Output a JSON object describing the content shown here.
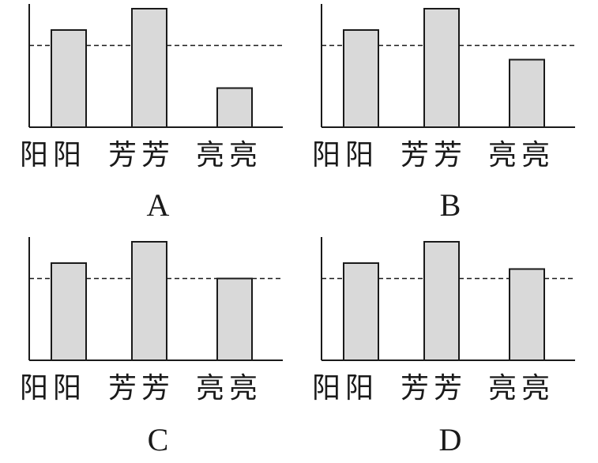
{
  "chart_data": [
    {
      "type": "bar",
      "option": "A",
      "categories": [
        "阳阳",
        "芳芳",
        "亮亮"
      ],
      "values": [
        82,
        100,
        33
      ],
      "reference_line": 69,
      "reference_style": "dashed",
      "ylim": [
        0,
        100
      ],
      "grid": false
    },
    {
      "type": "bar",
      "option": "B",
      "categories": [
        "阳阳",
        "芳芳",
        "亮亮"
      ],
      "values": [
        82,
        100,
        57
      ],
      "reference_line": 69,
      "reference_style": "dashed",
      "ylim": [
        0,
        100
      ],
      "grid": false
    },
    {
      "type": "bar",
      "option": "C",
      "categories": [
        "阳阳",
        "芳芳",
        "亮亮"
      ],
      "values": [
        82,
        100,
        69
      ],
      "reference_line": 69,
      "reference_style": "dashed",
      "ylim": [
        0,
        100
      ],
      "grid": false
    },
    {
      "type": "bar",
      "option": "D",
      "categories": [
        "阳阳",
        "芳芳",
        "亮亮"
      ],
      "values": [
        82,
        100,
        77
      ],
      "reference_line": 69,
      "reference_style": "dashed",
      "ylim": [
        0,
        100
      ],
      "grid": false
    }
  ],
  "colors": {
    "bar_fill": "#d9d9d9",
    "stroke": "#1a1a1a"
  }
}
